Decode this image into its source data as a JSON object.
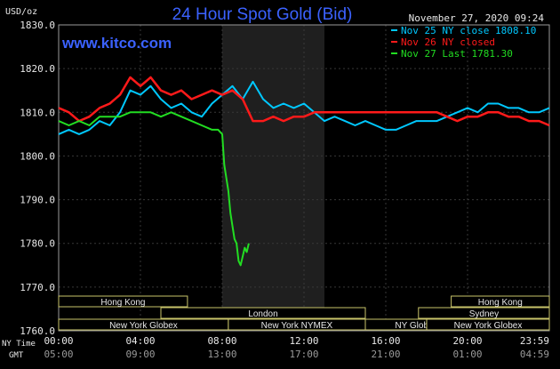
{
  "header": {
    "unit": "USD/oz",
    "title": "24 Hour Spot Gold (Bid)",
    "date": "November 27, 2020 09:24",
    "brand": "www.kitco.com"
  },
  "axis_labels": {
    "ny_time": "NY Time",
    "gmt": "GMT"
  },
  "legend": [
    {
      "label": "Nov 25 NY close 1808.10",
      "color": "#00c8ff"
    },
    {
      "label": "Nov 26 NY closed",
      "color": "#ff1a1a"
    },
    {
      "label": "Nov 27 Last 1781.30",
      "color": "#22dd22"
    }
  ],
  "sessions": [
    {
      "label": "Hong Kong",
      "start": 0,
      "end": 6.3
    },
    {
      "label": "London",
      "start": 5.0,
      "end": 15.0
    },
    {
      "label": "New York Globex",
      "start": 0,
      "end": 8.3
    },
    {
      "label": "New York NYMEX",
      "start": 8.3,
      "end": 15.0
    },
    {
      "label": "NY Globex",
      "start": 15.0,
      "end": 20.0
    },
    {
      "label": "Hong Kong",
      "start": 19.2,
      "end": 24.0
    },
    {
      "label": "Sydney",
      "start": 17.6,
      "end": 24.0
    },
    {
      "label": "New York Globex",
      "start": 18.0,
      "end": 24.0
    }
  ],
  "chart_data": {
    "type": "line",
    "x_unit": "hours since 00:00 NY time",
    "xlim": [
      0,
      24
    ],
    "ylim": [
      1760,
      1830
    ],
    "yticks": [
      "1830.0",
      "1820.0",
      "1810.0",
      "1800.0",
      "1790.0",
      "1780.0",
      "1770.0",
      "1760.0"
    ],
    "ytick_values": [
      1830,
      1820,
      1810,
      1800,
      1790,
      1780,
      1770,
      1760
    ],
    "xticks": [
      "00:00",
      "04:00",
      "08:00",
      "12:00",
      "16:00",
      "20:00",
      "23:59"
    ],
    "xtick_values": [
      0,
      4,
      8,
      12,
      16,
      20,
      24
    ],
    "gmt_ticks": [
      "05:00",
      "09:00",
      "13:00",
      "17:00",
      "21:00",
      "01:00",
      "04:59"
    ],
    "shaded_region": [
      8.0,
      13.0
    ],
    "series": [
      {
        "name": "Nov 25 NY close 1808.10",
        "color": "#00c8ff",
        "x": [
          0,
          0.5,
          1.0,
          1.5,
          2.0,
          2.5,
          3.0,
          3.5,
          4.0,
          4.5,
          5.0,
          5.5,
          6.0,
          6.5,
          7.0,
          7.5,
          8.0,
          8.5,
          9.0,
          9.5,
          10.0,
          10.5,
          11.0,
          11.5,
          12.0,
          12.5,
          13.0,
          13.5,
          14.0,
          14.5,
          15.0,
          15.5,
          16.0,
          16.5,
          17.0,
          17.5,
          18.0,
          18.5,
          19.0,
          19.5,
          20.0,
          20.5,
          21.0,
          21.5,
          22.0,
          22.5,
          23.0,
          23.5,
          24.0
        ],
        "y": [
          1805,
          1806,
          1805,
          1806,
          1808,
          1807,
          1810,
          1815,
          1814,
          1816,
          1813,
          1811,
          1812,
          1810,
          1809,
          1812,
          1814,
          1816,
          1813,
          1817,
          1813,
          1811,
          1812,
          1811,
          1812,
          1810,
          1808,
          1809,
          1808,
          1807,
          1808,
          1807,
          1806,
          1806,
          1807,
          1808,
          1808,
          1808,
          1809,
          1810,
          1811,
          1810,
          1812,
          1812,
          1811,
          1811,
          1810,
          1810,
          1811
        ]
      },
      {
        "name": "Nov 26 NY closed",
        "color": "#ff1a1a",
        "x": [
          0,
          0.5,
          1.0,
          1.5,
          2.0,
          2.5,
          3.0,
          3.5,
          4.0,
          4.5,
          5.0,
          5.5,
          6.0,
          6.5,
          7.0,
          7.5,
          8.0,
          8.5,
          9.0,
          9.5,
          10.0,
          10.5,
          11.0,
          11.5,
          12.0,
          12.5,
          13.0,
          13.5,
          14.0,
          14.5,
          15.0,
          15.5,
          16.0,
          16.5,
          17.0,
          17.5,
          18.0,
          18.5,
          19.0,
          19.5,
          20.0,
          20.5,
          21.0,
          21.5,
          22.0,
          22.5,
          23.0,
          23.5,
          24.0
        ],
        "y": [
          1811,
          1810,
          1808,
          1809,
          1811,
          1812,
          1814,
          1818,
          1816,
          1818,
          1815,
          1814,
          1815,
          1813,
          1814,
          1815,
          1814,
          1815,
          1813,
          1808,
          1808,
          1809,
          1808,
          1809,
          1809,
          1810,
          1810,
          1810,
          1810,
          1810,
          1810,
          1810,
          1810,
          1810,
          1810,
          1810,
          1810,
          1810,
          1809,
          1808,
          1809,
          1809,
          1810,
          1810,
          1809,
          1809,
          1808,
          1808,
          1807
        ]
      },
      {
        "name": "Nov 27 Last 1781.30",
        "color": "#22dd22",
        "x": [
          0,
          0.5,
          1.0,
          1.5,
          2.0,
          2.5,
          3.0,
          3.5,
          4.0,
          4.5,
          5.0,
          5.5,
          6.0,
          6.5,
          7.0,
          7.5,
          7.8,
          8.0,
          8.1,
          8.2,
          8.3,
          8.4,
          8.5,
          8.6,
          8.7,
          8.8,
          8.9,
          9.0,
          9.1,
          9.2,
          9.3
        ],
        "y": [
          1808,
          1807,
          1808,
          1807,
          1809,
          1809,
          1809,
          1810,
          1810,
          1810,
          1809,
          1810,
          1809,
          1808,
          1807,
          1806,
          1806,
          1805,
          1798,
          1795,
          1792,
          1787,
          1784,
          1781,
          1780,
          1776,
          1775,
          1777,
          1779,
          1778,
          1780
        ]
      }
    ]
  }
}
